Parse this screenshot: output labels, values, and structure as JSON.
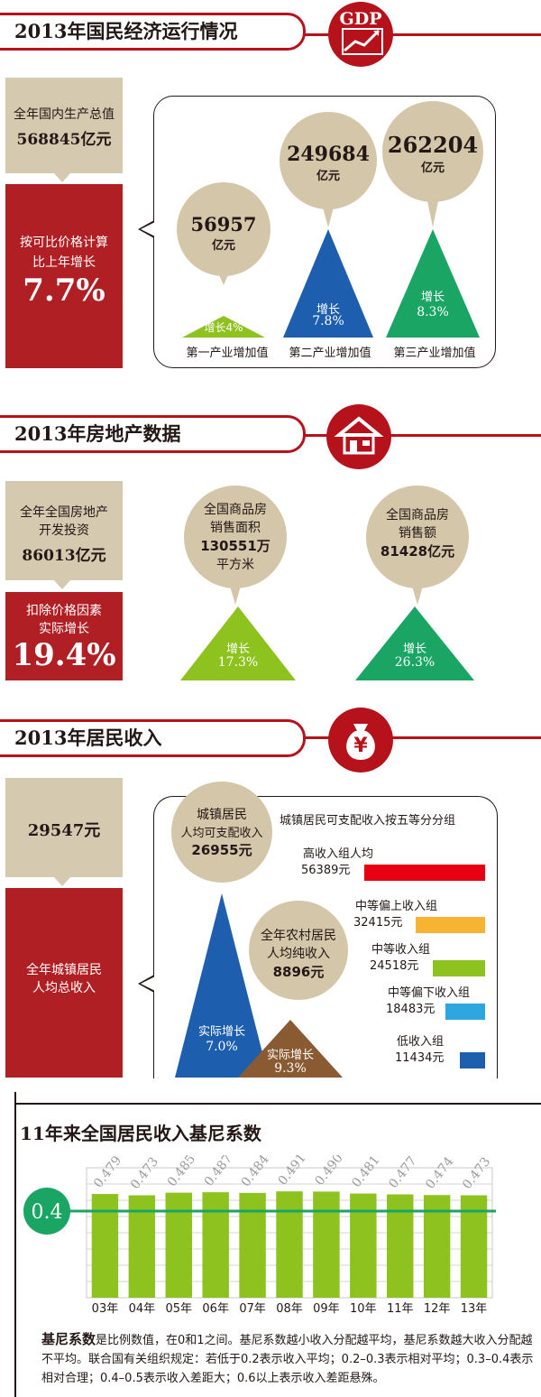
{
  "section1": {
    "title": "2013年国民经济运行情况",
    "icon_label": "GDP",
    "gdp_label": "全年国内生产总值",
    "gdp_value": "568845亿元",
    "growth_label_1": "按可比价格计算",
    "growth_label_2": "比上年增长",
    "growth_value": "7.7%",
    "industries": [
      {
        "value": "56957",
        "unit": "亿元",
        "growth_label": "增长",
        "growth": "4%",
        "name": "第一产业增加值",
        "color": "#8dc21f"
      },
      {
        "value": "249684",
        "unit": "亿元",
        "growth_label": "增长",
        "growth": "7.8%",
        "name": "第二产业增加值",
        "color": "#1d5fae"
      },
      {
        "value": "262204",
        "unit": "亿元",
        "growth_label": "增长",
        "growth": "8.3%",
        "name": "第三产业增加值",
        "color": "#1aa564"
      }
    ]
  },
  "section2": {
    "title": "2013年房地产数据",
    "invest_label_1": "全年全国房地产",
    "invest_label_2": "开发投资",
    "invest_value": "86013亿元",
    "growth_label_1": "扣除价格因素",
    "growth_label_2": "实际增长",
    "growth_value": "19.4%",
    "area": {
      "line1": "全国商品房",
      "line2": "销售面积",
      "line3": "130551万",
      "line4": "平方米",
      "growth_label": "增长",
      "growth": "17.3%",
      "color": "#8dc21f"
    },
    "sales": {
      "line1": "全国商品房",
      "line2": "销售额",
      "line3": "81428亿元",
      "growth_label": "增长",
      "growth": "26.3%",
      "color": "#1aa564"
    }
  },
  "section3": {
    "title": "2013年居民收入",
    "icon_label": "¥",
    "total_value": "29547元",
    "total_label_1": "全年城镇居民",
    "total_label_2": "人均总收入",
    "urban": {
      "line1": "城镇居民",
      "line2": "人均可支配收入",
      "line3": "26955元",
      "growth_label": "实际增长",
      "growth": "7.0%",
      "color": "#1d5fae"
    },
    "rural": {
      "line1": "全年农村居民",
      "line2": "人均纯收入",
      "line3": "8896元",
      "growth_label": "实际增长",
      "growth": "9.3%",
      "color": "#8a5a32"
    },
    "quintile_title": "城镇居民可支配收入按五等分分组",
    "quintiles": [
      {
        "name": "高收入组人均",
        "value": "56389元",
        "amount": 56389,
        "color": "#e60012"
      },
      {
        "name": "中等偏上收入组",
        "value": "32415元",
        "amount": 32415,
        "color": "#f6b432"
      },
      {
        "name": "中等收入组",
        "value": "24518元",
        "amount": 24518,
        "color": "#8dc21f"
      },
      {
        "name": "中等偏下收入组",
        "value": "18483元",
        "amount": 18483,
        "color": "#2ea7e0"
      },
      {
        "name": "低收入组",
        "value": "11434元",
        "amount": 11434,
        "color": "#1d5fae"
      }
    ]
  },
  "section4": {
    "description_bold": "基尼系数",
    "description": "是比例数值，在0和1之间。基尼系数越小收入分配越平均，基尼系数越大收入分配越不平均。联合国有关组织规定：若低于0.2表示收入平均；0.2–0.3表示相对平均；0.3–0.4表示相对合理；0.4–0.5表示收入差距大；0.6以上表示收入差距悬殊。"
  },
  "chart_data": {
    "type": "bar",
    "title": "11年来全国居民收入基尼系数",
    "categories": [
      "03年",
      "04年",
      "05年",
      "06年",
      "07年",
      "08年",
      "09年",
      "10年",
      "11年",
      "12年",
      "13年"
    ],
    "values": [
      0.479,
      0.473,
      0.485,
      0.487,
      0.484,
      0.491,
      0.49,
      0.481,
      0.477,
      0.474,
      0.473
    ],
    "value_labels": [
      "0.479",
      "0.473",
      "0.485",
      "0.487",
      "0.484",
      "0.491",
      "0.490",
      "0.481",
      "0.477",
      "0.474",
      "0.473"
    ],
    "reference_line": {
      "value": 0.4,
      "label": "0.4"
    },
    "ylim": [
      0,
      0.6
    ],
    "bar_color": "#8dc21f",
    "line_color": "#1aa564",
    "grid": true
  }
}
